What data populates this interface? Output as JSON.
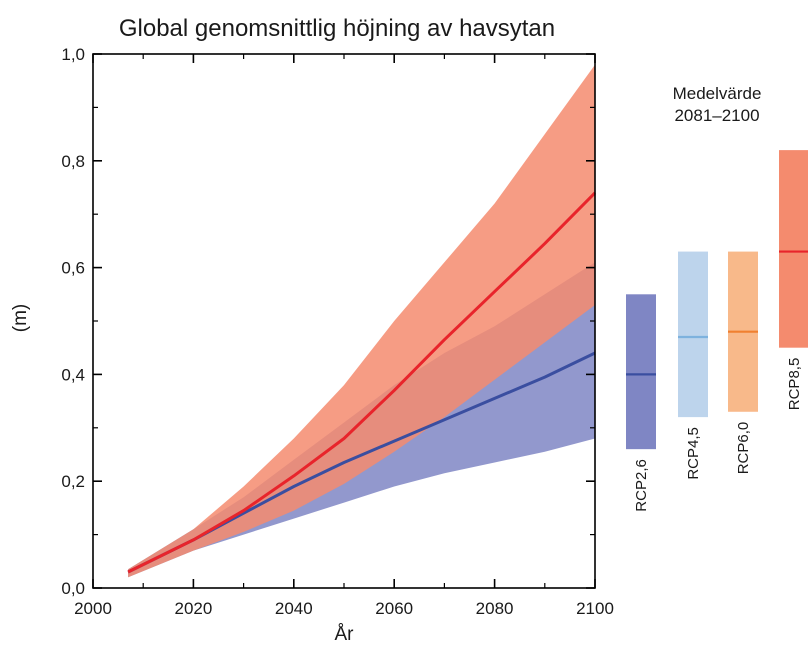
{
  "chart_data": {
    "type": "area",
    "title": "Global genomsnittlig höjning av havsytan",
    "xlabel": "År",
    "ylabel": "(m)",
    "xlim": [
      2000,
      2100
    ],
    "ylim": [
      0.0,
      1.0
    ],
    "x_ticks": [
      2000,
      2020,
      2040,
      2060,
      2080,
      2100
    ],
    "x_tick_labels": [
      "2000",
      "2020",
      "2040",
      "2060",
      "2080",
      "2100"
    ],
    "y_ticks": [
      0.0,
      0.2,
      0.4,
      0.6,
      0.8,
      1.0
    ],
    "y_tick_labels": [
      "0,0",
      "0,2",
      "0,4",
      "0,6",
      "0,8",
      "1,0"
    ],
    "grid": false,
    "x": [
      2007,
      2020,
      2030,
      2040,
      2050,
      2060,
      2070,
      2080,
      2090,
      2100
    ],
    "series": [
      {
        "key": "rcp26",
        "color": "#3a4ea0",
        "band_color": "#7f86c4",
        "mean": [
          0.03,
          0.09,
          0.14,
          0.19,
          0.235,
          0.275,
          0.315,
          0.355,
          0.395,
          0.44
        ],
        "low": [
          0.02,
          0.07,
          0.1,
          0.13,
          0.16,
          0.19,
          0.215,
          0.235,
          0.255,
          0.28
        ],
        "high": [
          0.035,
          0.11,
          0.17,
          0.24,
          0.31,
          0.38,
          0.44,
          0.49,
          0.55,
          0.61
        ]
      },
      {
        "key": "rcp85",
        "color": "#e8242b",
        "band_color": "#f48b6e",
        "mean": [
          0.03,
          0.09,
          0.145,
          0.21,
          0.28,
          0.37,
          0.465,
          0.555,
          0.645,
          0.74
        ],
        "low": [
          0.02,
          0.07,
          0.105,
          0.145,
          0.195,
          0.255,
          0.32,
          0.39,
          0.46,
          0.53
        ],
        "high": [
          0.035,
          0.11,
          0.19,
          0.28,
          0.38,
          0.5,
          0.61,
          0.72,
          0.85,
          0.98
        ]
      }
    ],
    "side_panel": {
      "title_line1": "Medelvärde",
      "title_line2": "2081–2100",
      "bars": [
        {
          "label": "RCP2,6",
          "low": 0.26,
          "mean": 0.4,
          "high": 0.55,
          "color": "#7f86c4",
          "line_color": "#3a4ea0"
        },
        {
          "label": "RCP4,5",
          "low": 0.32,
          "mean": 0.47,
          "high": 0.63,
          "color": "#bdd4ec",
          "line_color": "#7eb2de"
        },
        {
          "label": "RCP6,0",
          "low": 0.33,
          "mean": 0.48,
          "high": 0.63,
          "color": "#f8b98a",
          "line_color": "#f08030"
        },
        {
          "label": "RCP8,5",
          "low": 0.45,
          "mean": 0.63,
          "high": 0.82,
          "color": "#f48b6e",
          "line_color": "#e8242b"
        }
      ]
    }
  }
}
